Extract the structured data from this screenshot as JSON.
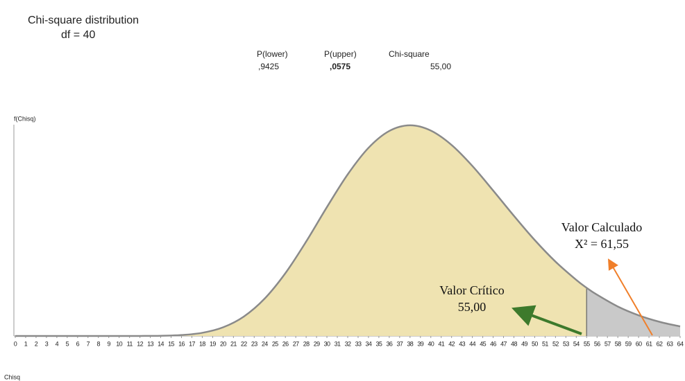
{
  "chart_data": {
    "type": "area",
    "title": "Chi-square distribution",
    "subtitle": "df = 40",
    "stats": [
      {
        "header": "P(lower)",
        "value": ",9425"
      },
      {
        "header": "P(upper)",
        "value": ",0575"
      },
      {
        "header": "Chi-square",
        "value": "55,00"
      }
    ],
    "y_label": "f(Chisq)",
    "x_label": "Chisq",
    "xlim": [
      0,
      64
    ],
    "ylim": [
      0,
      0.046
    ],
    "xticks": [
      0,
      1,
      2,
      3,
      4,
      5,
      6,
      7,
      8,
      9,
      10,
      11,
      12,
      13,
      14,
      15,
      16,
      17,
      18,
      19,
      20,
      21,
      22,
      23,
      24,
      25,
      26,
      27,
      28,
      29,
      30,
      31,
      32,
      33,
      34,
      35,
      36,
      37,
      38,
      39,
      40,
      41,
      42,
      43,
      44,
      45,
      46,
      47,
      48,
      49,
      50,
      51,
      52,
      53,
      54,
      55,
      56,
      57,
      58,
      59,
      60,
      61,
      62,
      63,
      64
    ],
    "threshold": 55,
    "lower_color": "#efe3b1",
    "upper_color": "#c9c9c9",
    "line_color": "#8a8a8a",
    "series": [
      {
        "name": "f(Chisq)",
        "x": [
          0,
          2,
          4,
          6,
          8,
          10,
          12,
          14,
          16,
          18,
          20,
          22,
          24,
          26,
          28,
          30,
          32,
          34,
          36,
          38,
          40,
          42,
          44,
          46,
          48,
          50,
          52,
          54,
          55,
          56,
          58,
          60,
          62,
          64
        ],
        "values": [
          0,
          0,
          0,
          0,
          0,
          0,
          6e-06,
          4.3e-05,
          0.000199,
          0.000685,
          0.00187,
          0.0042,
          0.00807,
          0.01358,
          0.02042,
          0.02788,
          0.03495,
          0.04069,
          0.04434,
          0.04557,
          0.04443,
          0.04131,
          0.03678,
          0.03146,
          0.02599,
          0.02075,
          0.01608,
          0.01213,
          0.01042,
          0.00892,
          0.00637,
          0.00447,
          0.00307,
          0.00206
        ]
      }
    ],
    "annotations": [
      {
        "label": "Valor Calculado",
        "value_label": "X² = 61,55"
      },
      {
        "label": "Valor Crítico",
        "value_label": "55,00"
      }
    ]
  }
}
